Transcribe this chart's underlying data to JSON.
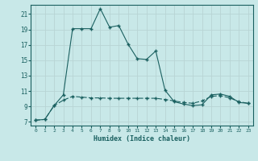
{
  "xlabel": "Humidex (Indice chaleur)",
  "bg_color": "#c8e8e8",
  "grid_color": "#b8d4d4",
  "line_color": "#1a6060",
  "xlim": [
    -0.5,
    23.5
  ],
  "ylim": [
    6.5,
    22.2
  ],
  "xticks": [
    0,
    1,
    2,
    3,
    4,
    5,
    6,
    7,
    8,
    9,
    10,
    11,
    12,
    13,
    14,
    15,
    16,
    17,
    18,
    19,
    20,
    21,
    22,
    23
  ],
  "yticks": [
    7,
    9,
    11,
    13,
    15,
    17,
    19,
    21
  ],
  "series1_x": [
    0,
    1,
    2,
    3,
    4,
    5,
    6,
    7,
    8,
    9,
    10,
    11,
    12,
    13,
    14,
    15,
    16,
    17,
    18,
    19,
    20,
    21,
    22,
    23
  ],
  "series1_y": [
    7.2,
    7.3,
    9.1,
    10.5,
    19.1,
    19.1,
    19.1,
    21.7,
    19.3,
    19.5,
    17.1,
    15.2,
    15.1,
    16.2,
    11.1,
    9.6,
    9.3,
    9.1,
    9.2,
    10.5,
    10.6,
    10.3,
    9.5,
    9.4
  ],
  "series2_x": [
    0,
    1,
    2,
    3,
    4,
    5,
    6,
    7,
    8,
    9,
    10,
    11,
    12,
    13,
    14,
    15,
    16,
    17,
    18,
    19,
    20,
    21,
    22,
    23
  ],
  "series2_y": [
    7.2,
    7.3,
    9.1,
    9.8,
    10.3,
    10.2,
    10.1,
    10.1,
    10.05,
    10.05,
    10.05,
    10.05,
    10.05,
    10.05,
    9.9,
    9.7,
    9.5,
    9.4,
    9.7,
    10.3,
    10.4,
    10.1,
    9.6,
    9.4
  ]
}
